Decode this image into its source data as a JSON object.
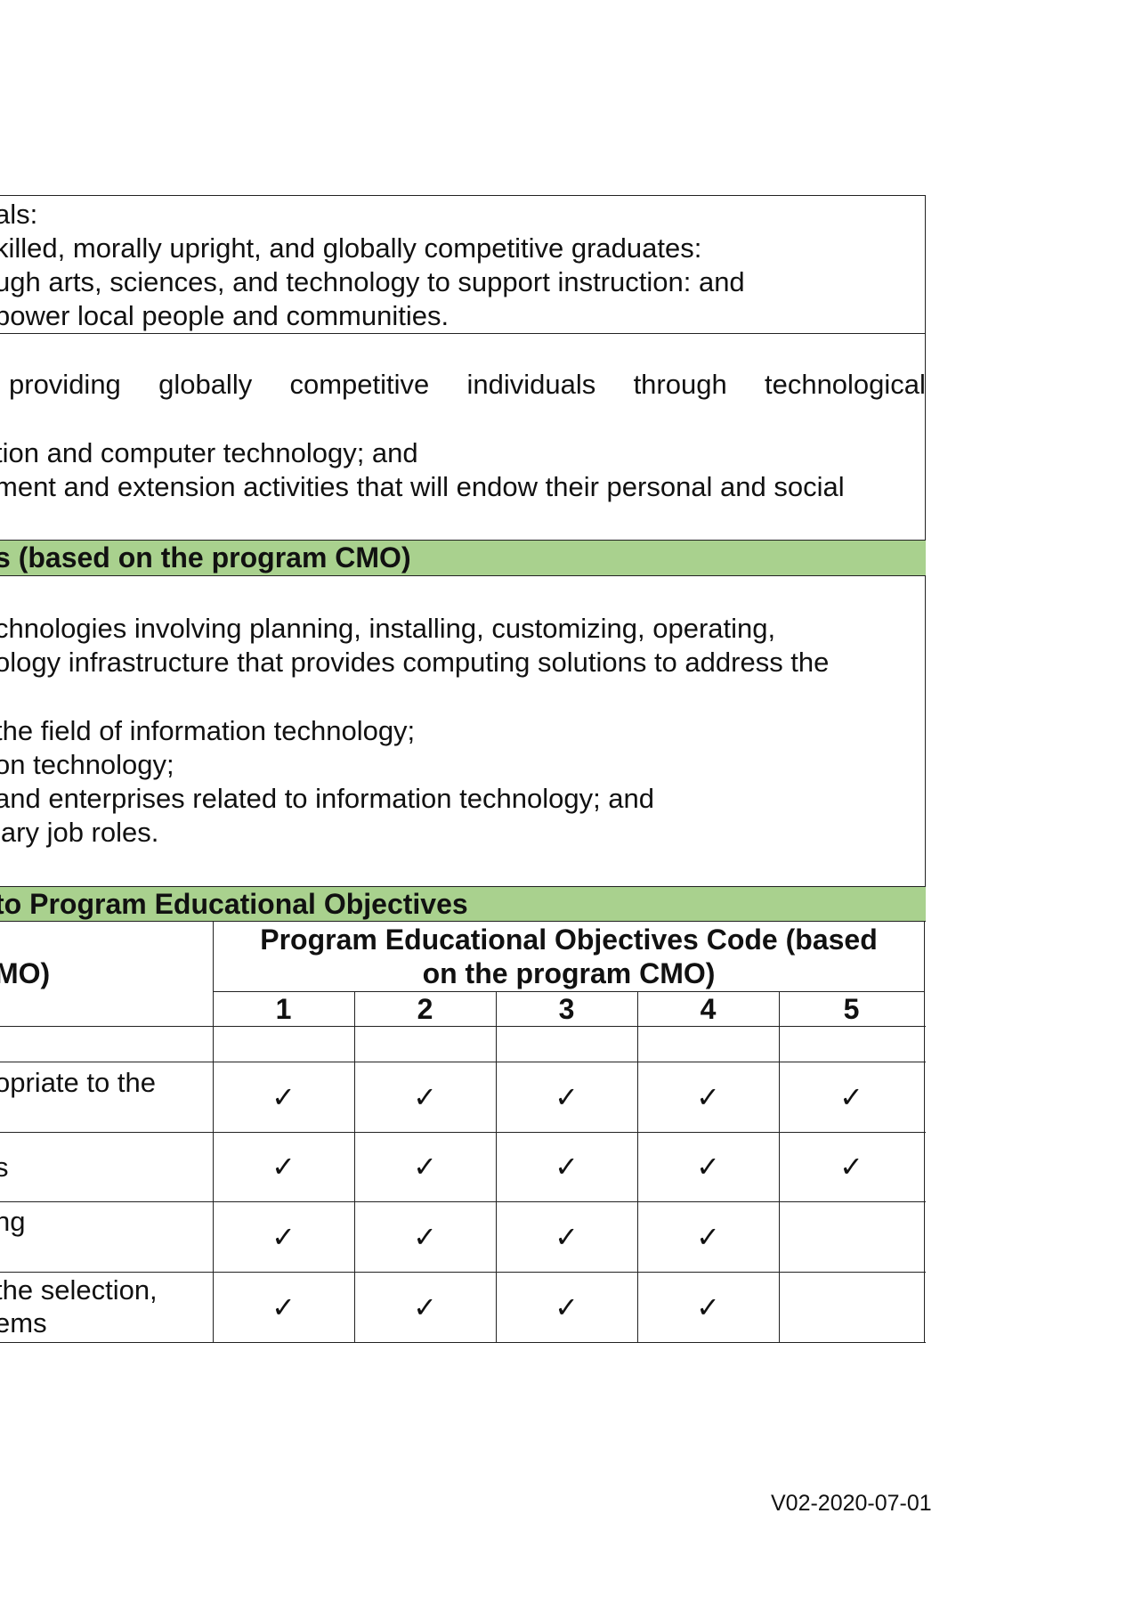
{
  "goals": {
    "lines": [
      "als:",
      "killed, morally upright, and globally competitive graduates:",
      "ugh arts, sciences, and technology to support instruction: and",
      "power local people and communities."
    ]
  },
  "objectives": {
    "line1_words": [
      "providing",
      "globally",
      "competitive",
      "individuals",
      "through",
      "technological"
    ],
    "line2": "tion and computer technology; and",
    "line3": "ment and extension activities that will endow their personal and social"
  },
  "peo_section": {
    "heading": "s (based on the program CMO)",
    "lines": [
      "chnologies involving planning, installing, customizing, operating,",
      "ology infrastructure that provides computing solutions to address the",
      "the field of information technology;",
      "on technology;",
      " and enterprises related to information technology; and",
      "lary job roles."
    ]
  },
  "mapping_section": {
    "heading": "to Program Educational Objectives",
    "left_header": "MO)",
    "right_header_line1": "Program Educational Objectives Code (based",
    "right_header_line2": "on the program CMO)",
    "codes": [
      "1",
      "2",
      "3",
      "4",
      "5"
    ],
    "check_symbol": "✓",
    "rows": [
      {
        "label_lines": [
          ""
        ],
        "checks": [
          false,
          false,
          false,
          false,
          false
        ]
      },
      {
        "label_lines": [
          "opriate to the"
        ],
        "checks": [
          true,
          true,
          true,
          true,
          true
        ]
      },
      {
        "label_lines": [
          "s"
        ],
        "checks": [
          true,
          true,
          true,
          true,
          true
        ]
      },
      {
        "label_lines": [
          "ng"
        ],
        "checks": [
          true,
          true,
          true,
          true,
          false
        ]
      },
      {
        "label_lines": [
          "the selection,",
          "ems"
        ],
        "checks": [
          true,
          true,
          true,
          true,
          false
        ]
      }
    ]
  },
  "footer": {
    "version": "V02-2020-07-01"
  }
}
